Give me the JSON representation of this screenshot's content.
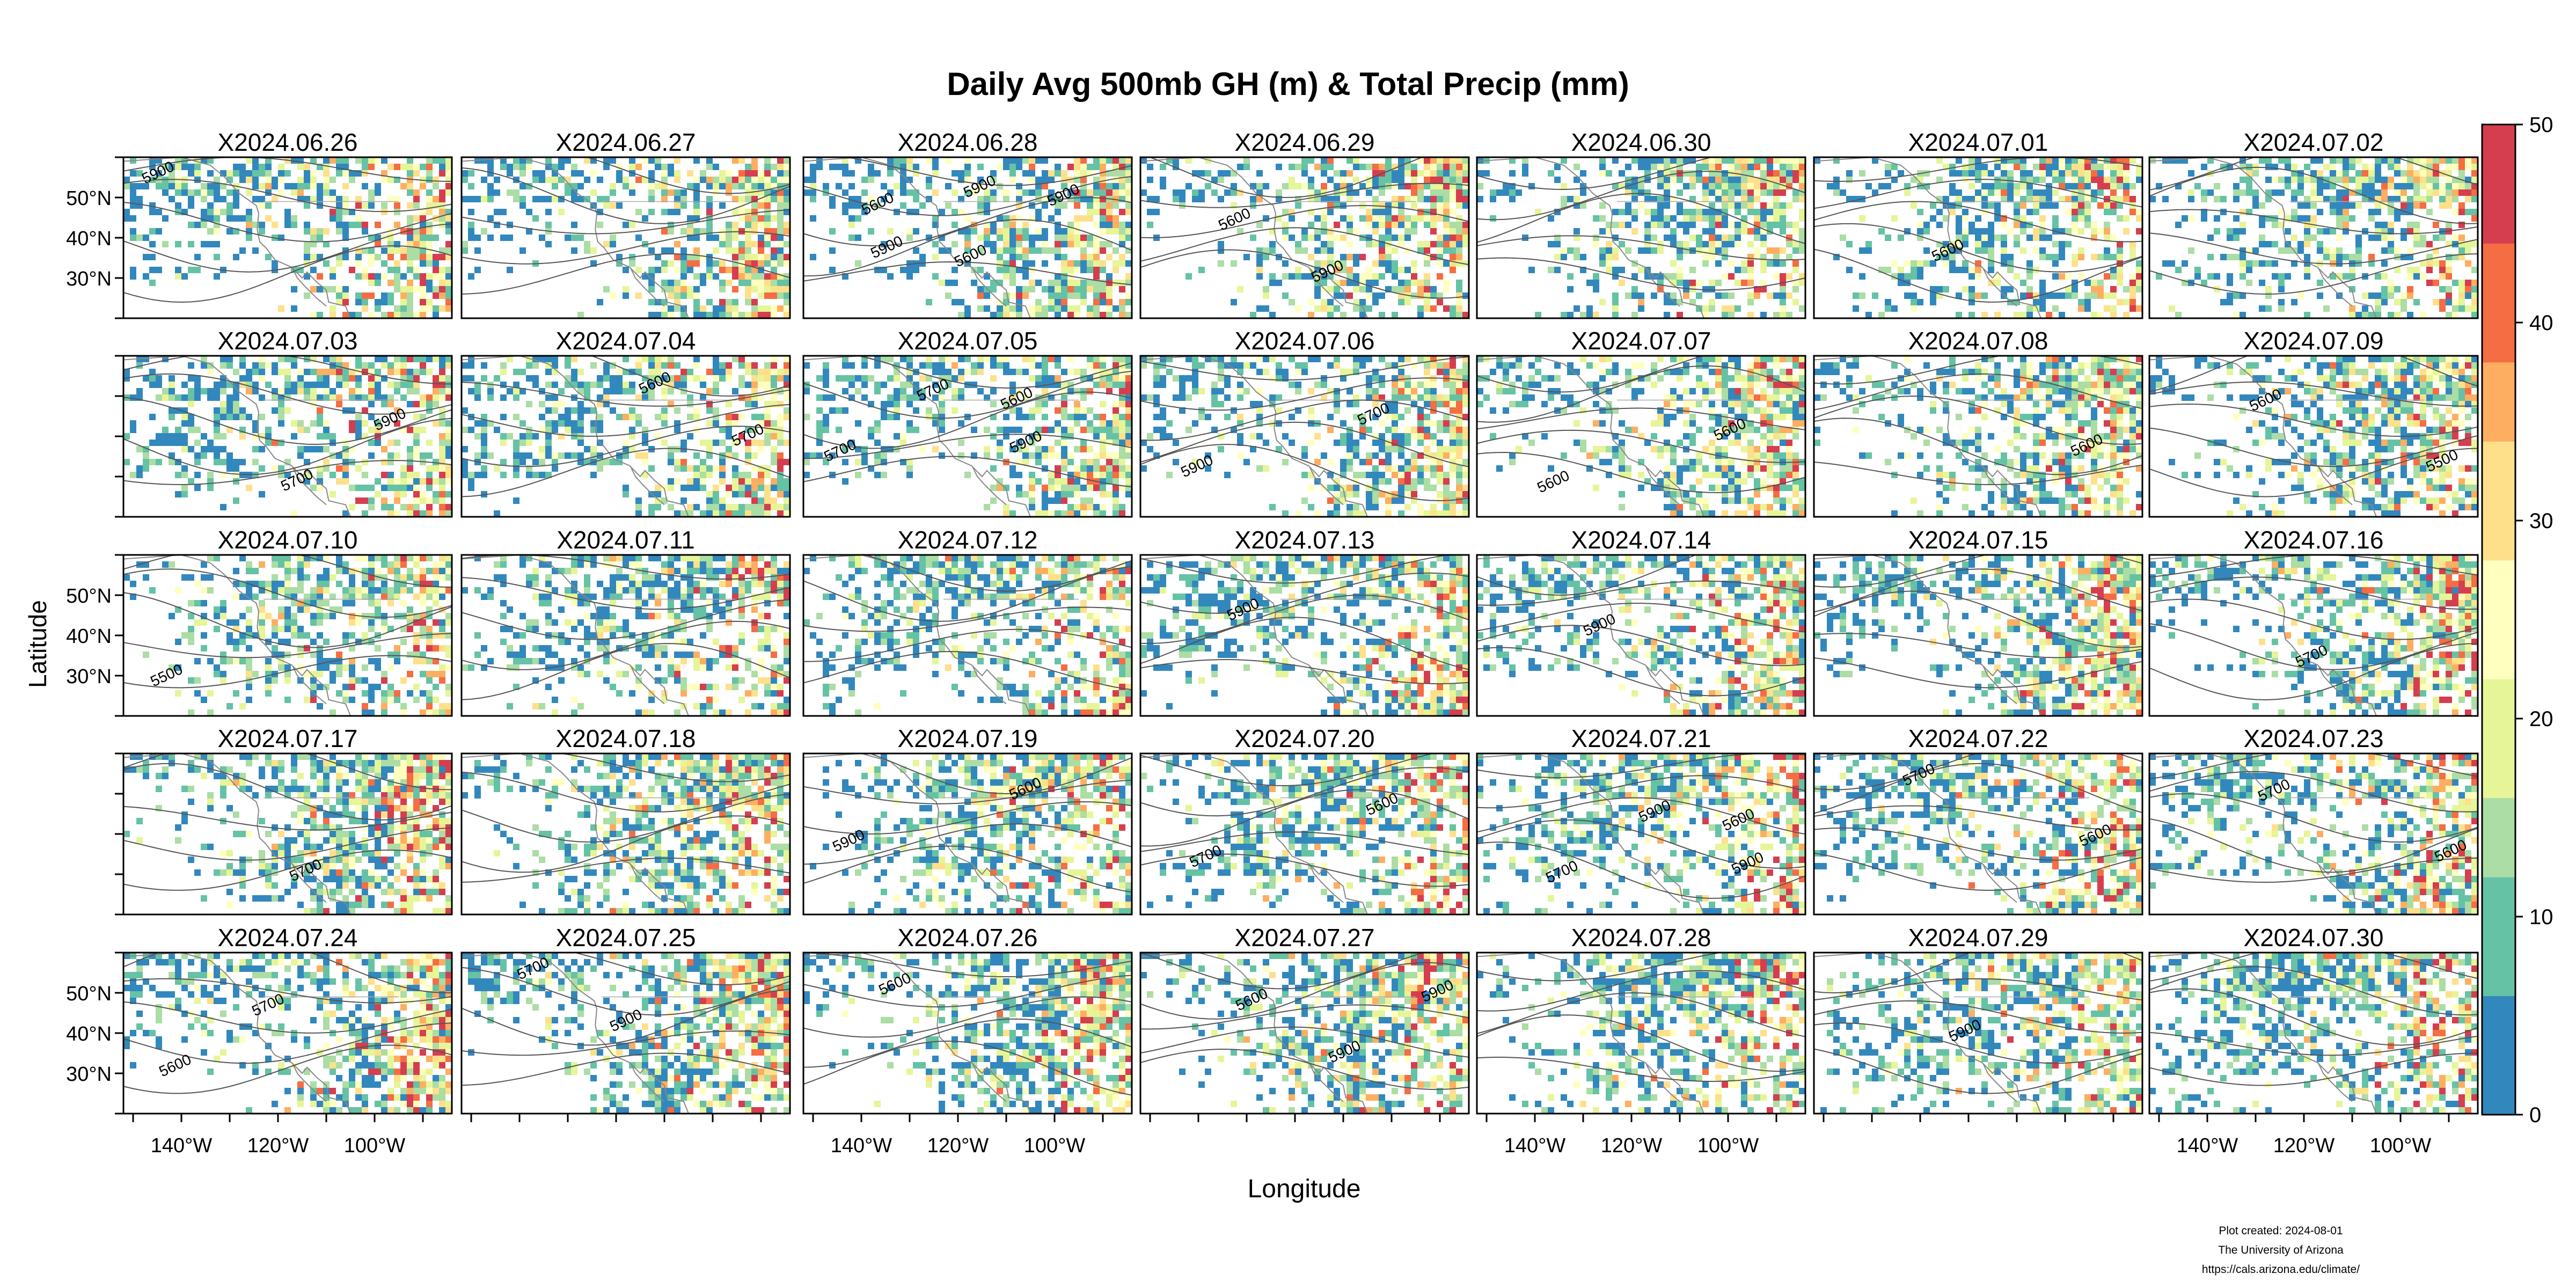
{
  "chart_data": {
    "type": "heatmap",
    "title": "Daily Avg 500mb GH (m) & Total Precip (mm)",
    "xlabel": "Longitude",
    "ylabel": "Latitude",
    "panel_layout": {
      "rows": 5,
      "columns": 7
    },
    "x_ticks": [
      "140°W",
      "120°W",
      "100°W"
    ],
    "y_ticks": [
      "50°N",
      "40°N",
      "30°N"
    ],
    "xlim": [
      -152,
      -84
    ],
    "ylim": [
      20,
      60
    ],
    "colorbar": {
      "variable": "Total Precip (mm)",
      "range": [
        0,
        50
      ],
      "ticks": [
        "0",
        "10",
        "20",
        "30",
        "40",
        "50"
      ],
      "colors": [
        "#3288bd",
        "#66c2a5",
        "#abdda4",
        "#e6f598",
        "#ffffbf",
        "#fee08b",
        "#fdae61",
        "#f46d43",
        "#d53e4f"
      ]
    },
    "contour_variable": "500mb GH (m)",
    "panels": [
      {
        "date": "X2024.06.26",
        "contour_labels": [
          "5900"
        ]
      },
      {
        "date": "X2024.06.27",
        "contour_labels": []
      },
      {
        "date": "X2024.06.28",
        "contour_labels": [
          "5600",
          "5600",
          "5900",
          "5900",
          "5900"
        ]
      },
      {
        "date": "X2024.06.29",
        "contour_labels": [
          "5600",
          "5900"
        ]
      },
      {
        "date": "X2024.06.30",
        "contour_labels": []
      },
      {
        "date": "X2024.07.01",
        "contour_labels": [
          "5600"
        ]
      },
      {
        "date": "X2024.07.02",
        "contour_labels": []
      },
      {
        "date": "X2024.07.03",
        "contour_labels": [
          "5700",
          "5900"
        ]
      },
      {
        "date": "X2024.07.04",
        "contour_labels": [
          "5600",
          "5700"
        ]
      },
      {
        "date": "X2024.07.05",
        "contour_labels": [
          "5600",
          "5700",
          "5700",
          "5900"
        ]
      },
      {
        "date": "X2024.07.06",
        "contour_labels": [
          "5700",
          "5900"
        ]
      },
      {
        "date": "X2024.07.07",
        "contour_labels": [
          "5600",
          "5600"
        ]
      },
      {
        "date": "X2024.07.08",
        "contour_labels": [
          "5600"
        ]
      },
      {
        "date": "X2024.07.09",
        "contour_labels": [
          "5500",
          "5600"
        ]
      },
      {
        "date": "X2024.07.10",
        "contour_labels": [
          "5500"
        ]
      },
      {
        "date": "X2024.07.11",
        "contour_labels": []
      },
      {
        "date": "X2024.07.12",
        "contour_labels": []
      },
      {
        "date": "X2024.07.13",
        "contour_labels": [
          "5900"
        ]
      },
      {
        "date": "X2024.07.14",
        "contour_labels": [
          "5900"
        ]
      },
      {
        "date": "X2024.07.15",
        "contour_labels": []
      },
      {
        "date": "X2024.07.16",
        "contour_labels": [
          "5700"
        ]
      },
      {
        "date": "X2024.07.17",
        "contour_labels": [
          "5700"
        ]
      },
      {
        "date": "X2024.07.18",
        "contour_labels": []
      },
      {
        "date": "X2024.07.19",
        "contour_labels": [
          "5600",
          "5900"
        ]
      },
      {
        "date": "X2024.07.20",
        "contour_labels": [
          "5600",
          "5700"
        ]
      },
      {
        "date": "X2024.07.21",
        "contour_labels": [
          "5600",
          "5700",
          "5900",
          "5900"
        ]
      },
      {
        "date": "X2024.07.22",
        "contour_labels": [
          "5600",
          "5700"
        ]
      },
      {
        "date": "X2024.07.23",
        "contour_labels": [
          "5600",
          "5700"
        ]
      },
      {
        "date": "X2024.07.24",
        "contour_labels": [
          "5600",
          "5700"
        ]
      },
      {
        "date": "X2024.07.25",
        "contour_labels": [
          "5700",
          "5900"
        ]
      },
      {
        "date": "X2024.07.26",
        "contour_labels": [
          "5600"
        ]
      },
      {
        "date": "X2024.07.27",
        "contour_labels": [
          "5600",
          "5900",
          "5900"
        ]
      },
      {
        "date": "X2024.07.28",
        "contour_labels": []
      },
      {
        "date": "X2024.07.29",
        "contour_labels": [
          "5900"
        ]
      },
      {
        "date": "X2024.07.30",
        "contour_labels": []
      }
    ]
  },
  "footer": {
    "line1": "Plot created: 2024-08-01",
    "line2": "The University of Arizona",
    "line3": "https://cals.arizona.edu/climate/"
  }
}
